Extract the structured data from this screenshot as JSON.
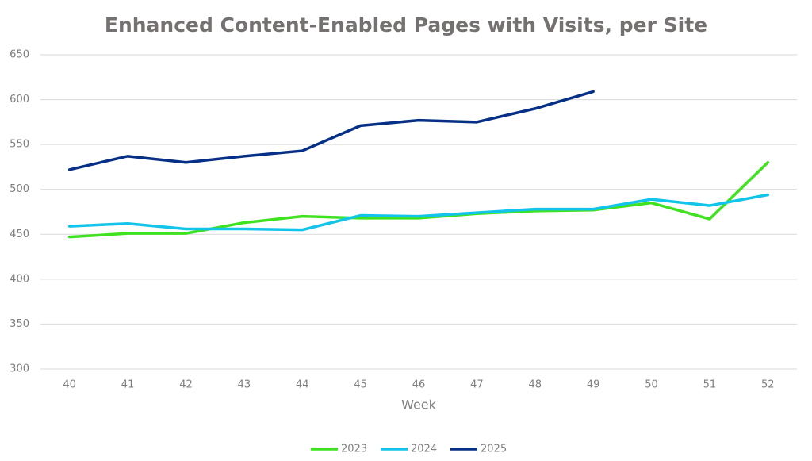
{
  "chart_data": {
    "type": "line",
    "title": "Enhanced Content-Enabled Pages with Visits, per Site",
    "x_label": "Week",
    "categories": [
      "40",
      "41",
      "42",
      "43",
      "44",
      "45",
      "46",
      "47",
      "48",
      "49",
      "50",
      "51",
      "52"
    ],
    "series": [
      {
        "name": "2023",
        "color": "#3fe21f",
        "values": [
          447,
          451,
          451,
          463,
          470,
          468,
          468,
          473,
          476,
          477,
          485,
          467,
          530
        ]
      },
      {
        "name": "2024",
        "color": "#12c3ea",
        "values": [
          459,
          462,
          456,
          456,
          455,
          471,
          470,
          474,
          478,
          478,
          489,
          482,
          494
        ]
      },
      {
        "name": "2025",
        "color": "#062f86",
        "values": [
          522,
          537,
          530,
          537,
          543,
          571,
          577,
          575,
          590,
          609,
          null,
          null,
          null
        ]
      }
    ],
    "ylim": [
      300,
      650
    ],
    "yticks": [
      300,
      350,
      400,
      450,
      500,
      550,
      600,
      650
    ],
    "grid": true,
    "legend": "bottom"
  }
}
